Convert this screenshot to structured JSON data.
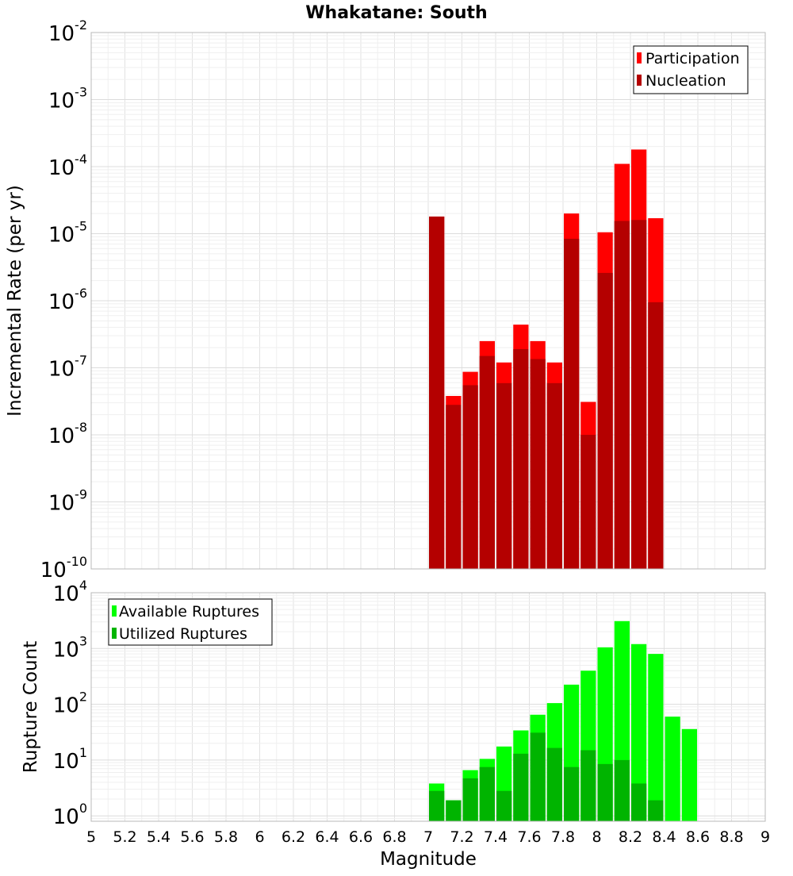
{
  "chart_data": [
    {
      "type": "bar",
      "title": "Whakatane: South",
      "ylabel": "Incremental Rate (per yr)",
      "xlabel": "",
      "yscale": "log",
      "ylim": [
        1e-10,
        0.01
      ],
      "xlim": [
        5,
        9
      ],
      "grid": true,
      "legend_position": "top-right",
      "bar_width": 0.1,
      "y_tick_base": "10",
      "y_tick_exponents": [
        "-10",
        "-9",
        "-8",
        "-7",
        "-6",
        "-5",
        "-4",
        "-3",
        "-2"
      ],
      "x": [
        7.05,
        7.15,
        7.25,
        7.35,
        7.45,
        7.55,
        7.65,
        7.75,
        7.85,
        7.95,
        8.05,
        8.15,
        8.25,
        8.35
      ],
      "series": [
        {
          "name": "Participation",
          "color": "#ff0000",
          "values": [
            1.8e-05,
            3.8e-08,
            8.7e-08,
            2.5e-07,
            1.2e-07,
            4.4e-07,
            2.5e-07,
            1.2e-07,
            2e-05,
            3.1e-08,
            1.05e-05,
            0.00011,
            0.00018,
            1.7e-05
          ]
        },
        {
          "name": "Nucleation",
          "color": "#b40000",
          "values": [
            1.8e-05,
            2.8e-08,
            5.5e-08,
            1.5e-07,
            5.9e-08,
            1.9e-07,
            1.35e-07,
            5.9e-08,
            8.4e-06,
            1e-08,
            2.6e-06,
            1.55e-05,
            1.6e-05,
            9.5e-07
          ]
        }
      ]
    },
    {
      "type": "bar",
      "title": "",
      "ylabel": "Rupture Count",
      "xlabel": "Magnitude",
      "yscale": "log",
      "ylim": [
        0.8,
        10000
      ],
      "xlim": [
        5,
        9
      ],
      "grid": true,
      "legend_position": "top-left",
      "bar_width": 0.1,
      "y_tick_base": "10",
      "y_tick_exponents": [
        "0",
        "1",
        "2",
        "3",
        "4"
      ],
      "x_ticks": [
        "5",
        "5.2",
        "5.4",
        "5.6",
        "5.8",
        "6",
        "6.2",
        "6.4",
        "6.6",
        "6.8",
        "7",
        "7.2",
        "7.4",
        "7.6",
        "7.8",
        "8",
        "8.2",
        "8.4",
        "8.6",
        "8.8",
        "9"
      ],
      "x": [
        7.05,
        7.15,
        7.25,
        7.35,
        7.45,
        7.55,
        7.65,
        7.75,
        7.85,
        7.95,
        8.05,
        8.15,
        8.25,
        8.35,
        8.45,
        8.55
      ],
      "series": [
        {
          "name": "Available Ruptures",
          "color": "#00ff00",
          "values": [
            3.8,
            1.9,
            6.6,
            10.5,
            17.5,
            34,
            65,
            105,
            225,
            400,
            1050,
            3100,
            1200,
            800,
            60,
            36
          ]
        },
        {
          "name": "Utilized Ruptures",
          "color": "#00b400",
          "values": [
            2.8,
            1.9,
            4.7,
            7.5,
            2.8,
            13,
            31,
            16.5,
            7.5,
            15,
            8.5,
            10,
            3.8,
            1.9,
            0,
            0
          ]
        }
      ]
    }
  ]
}
